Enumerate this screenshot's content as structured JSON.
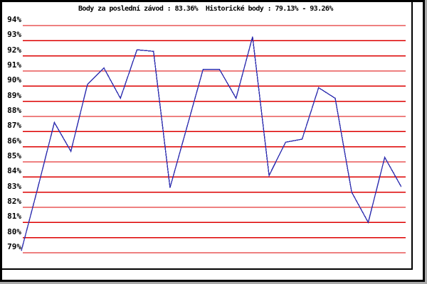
{
  "chart_data": {
    "type": "line",
    "title": "Body za poslední závod : 83.36%  Historické body : 79.13% - 93.26%",
    "stats": {
      "last_race_points": "83.36%",
      "historical_min": "79.13%",
      "historical_max": "93.26%"
    },
    "y_ticks": [
      "94%",
      "93%",
      "92%",
      "91%",
      "90%",
      "89%",
      "88%",
      "87%",
      "86%",
      "85%",
      "84%",
      "83%",
      "82%",
      "81%",
      "80%",
      "79%"
    ],
    "ylim": [
      79,
      94
    ],
    "grid": true,
    "legend": "none",
    "xlabel": "",
    "ylabel": "",
    "x": [
      1,
      2,
      3,
      4,
      5,
      6,
      7,
      8,
      9,
      10,
      11,
      12,
      13,
      14,
      15,
      16,
      17,
      18,
      19,
      20,
      21,
      22,
      23,
      24
    ],
    "values": [
      79.13,
      83.3,
      87.6,
      85.7,
      90.1,
      91.2,
      89.2,
      92.4,
      92.3,
      83.3,
      87.2,
      91.1,
      91.1,
      89.2,
      93.26,
      84.1,
      86.3,
      86.5,
      89.9,
      89.2,
      83.0,
      81.0,
      85.3,
      83.36
    ],
    "colors": {
      "grid": "#dd0000",
      "line": "#3030b0",
      "text": "#000000",
      "frame": "#000000",
      "background": "#ffffff",
      "outside_margin": "#aaaaaa"
    }
  }
}
